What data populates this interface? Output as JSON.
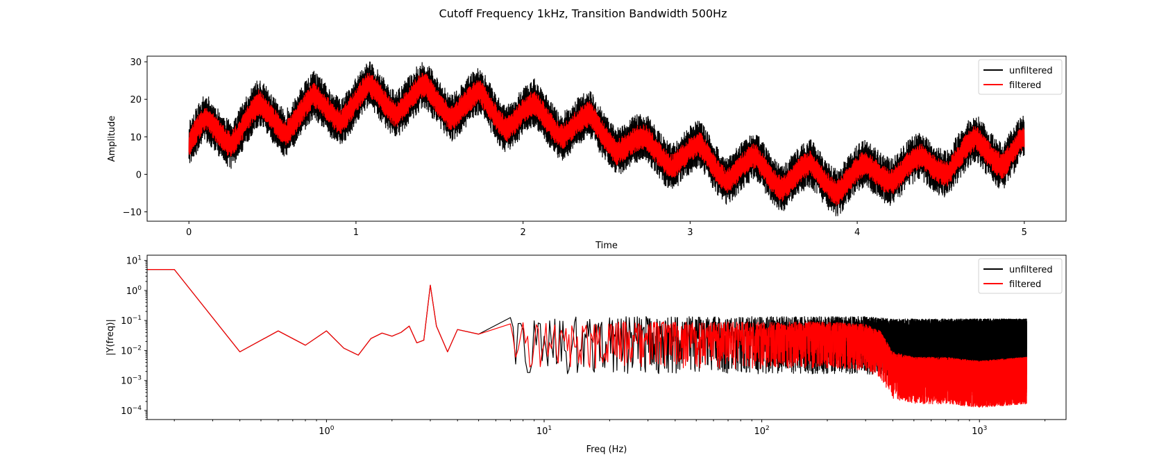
{
  "figure": {
    "title": "Cutoff Frequency 1kHz, Transition Bandwidth 500Hz"
  },
  "colors": {
    "unfiltered": "#000000",
    "filtered": "#ff0000"
  },
  "chart_data": [
    {
      "type": "line",
      "xlabel": "Time",
      "ylabel": "Amplitude",
      "xlim": [
        -0.25,
        5.25
      ],
      "ylim": [
        -12.5,
        31.5
      ],
      "xticks": [
        0,
        1,
        2,
        3,
        4,
        5
      ],
      "xtick_labels": [
        "0",
        "1",
        "2",
        "3",
        "4",
        "5"
      ],
      "yticks": [
        -10,
        0,
        10,
        20,
        30
      ],
      "ytick_labels": [
        "−10",
        "0",
        "10",
        "20",
        "30"
      ],
      "legend": {
        "placement": "top-right",
        "entries": [
          "unfiltered",
          "filtered"
        ]
      },
      "series": [
        {
          "name": "unfiltered",
          "x": [
            0,
            0.1,
            0.25,
            0.42,
            0.58,
            0.75,
            0.91,
            1.08,
            1.24,
            1.41,
            1.57,
            1.74,
            1.9,
            2.07,
            2.23,
            2.4,
            2.56,
            2.73,
            2.89,
            3.06,
            3.22,
            3.39,
            3.55,
            3.72,
            3.88,
            4.05,
            4.21,
            4.38,
            4.54,
            4.71,
            4.87,
            5.0
          ],
          "y": [
            8,
            14,
            9,
            18,
            12,
            20,
            15,
            23,
            17,
            23,
            16,
            21,
            13,
            18,
            11,
            15,
            7,
            9,
            3,
            7,
            -1,
            4,
            -3,
            2,
            -4,
            2,
            -1,
            4,
            1,
            9,
            3,
            9
          ],
          "envelope": 6.5
        },
        {
          "name": "filtered",
          "x": [
            0,
            0.1,
            0.25,
            0.42,
            0.58,
            0.75,
            0.91,
            1.08,
            1.24,
            1.41,
            1.57,
            1.74,
            1.9,
            2.07,
            2.23,
            2.4,
            2.56,
            2.73,
            2.89,
            3.06,
            3.22,
            3.39,
            3.55,
            3.72,
            3.88,
            4.05,
            4.21,
            4.38,
            4.54,
            4.71,
            4.87,
            5.0
          ],
          "y": [
            8,
            14,
            9,
            18,
            12,
            20,
            15,
            23,
            17,
            23,
            16,
            21,
            13,
            18,
            11,
            15,
            7,
            9,
            3,
            7,
            -1,
            4,
            -3,
            2,
            -4,
            2,
            -1,
            4,
            1,
            9,
            3,
            9
          ],
          "envelope": 3.5
        }
      ]
    },
    {
      "type": "line",
      "xscale": "log",
      "yscale": "log",
      "xlabel": "Freq (Hz)",
      "ylabel": "|Y(freq)|",
      "xlim": [
        0.15,
        2500
      ],
      "ylim": [
        5e-05,
        15
      ],
      "xticks": [
        1,
        10,
        100,
        1000
      ],
      "xtick_labels": [
        "10^0",
        "10^1",
        "10^2",
        "10^3"
      ],
      "yticks": [
        0.0001,
        0.001,
        0.01,
        0.1,
        1,
        10
      ],
      "ytick_labels": [
        "10^-4",
        "10^-3",
        "10^-2",
        "10^-1",
        "10^0",
        "10^1"
      ],
      "legend": {
        "placement": "top-right",
        "entries": [
          "unfiltered",
          "filtered"
        ]
      },
      "series": [
        {
          "name": "unfiltered",
          "x": [
            0.15,
            0.2,
            0.4,
            0.6,
            0.8,
            1.0,
            1.2,
            1.4,
            1.6,
            1.8,
            2.0,
            2.2,
            2.4,
            2.6,
            2.8,
            3.0,
            3.2,
            3.6,
            4.0,
            5.0,
            7.0,
            10,
            20,
            50,
            100,
            200,
            300,
            400,
            600,
            1000,
            1650
          ],
          "y": [
            5,
            5,
            0.009,
            0.045,
            0.015,
            0.045,
            0.012,
            0.007,
            0.025,
            0.038,
            0.03,
            0.04,
            0.065,
            0.018,
            0.022,
            1.5,
            0.065,
            0.009,
            0.05,
            0.035,
            0.03,
            0.03,
            0.03,
            0.03,
            0.03,
            0.03,
            0.03,
            0.025,
            0.025,
            0.025,
            0.025
          ],
          "noise_band": [
            1.5,
            4.5
          ]
        },
        {
          "name": "filtered",
          "x": [
            0.15,
            0.2,
            0.4,
            0.6,
            0.8,
            1.0,
            1.2,
            1.4,
            1.6,
            1.8,
            2.0,
            2.2,
            2.4,
            2.6,
            2.8,
            3.0,
            3.2,
            3.6,
            4.0,
            5.0,
            7.0,
            10,
            20,
            50,
            100,
            200,
            300,
            350,
            400,
            500,
            700,
            1000,
            1650
          ],
          "y": [
            5,
            5,
            0.009,
            0.045,
            0.015,
            0.045,
            0.012,
            0.007,
            0.025,
            0.038,
            0.03,
            0.04,
            0.065,
            0.018,
            0.022,
            1.5,
            0.065,
            0.009,
            0.05,
            0.035,
            0.03,
            0.03,
            0.03,
            0.03,
            0.03,
            0.03,
            0.025,
            0.015,
            0.003,
            0.002,
            0.002,
            0.0015,
            0.002
          ],
          "noise_band": [
            1.5,
            3.0
          ]
        }
      ]
    }
  ]
}
